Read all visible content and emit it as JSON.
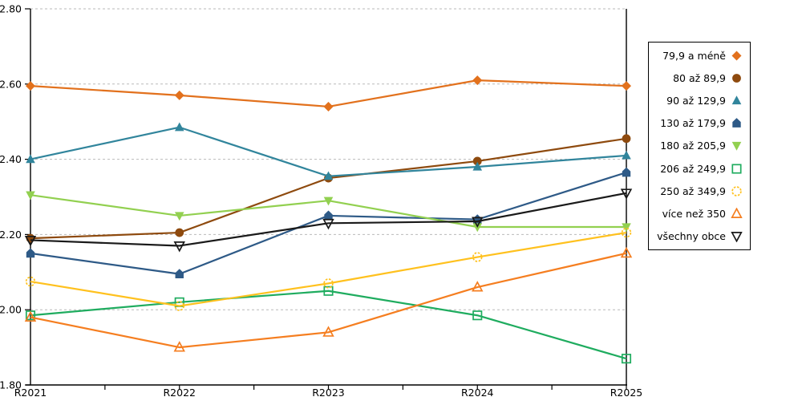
{
  "chart_data": {
    "type": "line",
    "title": "",
    "xlabel": "",
    "ylabel": "",
    "categories": [
      "R2021",
      "R2022",
      "R2023",
      "R2024",
      "R2025"
    ],
    "y_axis": {
      "min": 1.8,
      "max": 2.8,
      "tick_step": 0.2,
      "tick_labels": [
        "2.80",
        "2.60",
        "2.40",
        "2.20",
        "2.00",
        "1.80"
      ]
    },
    "grid": "horizontal dashed gray lines at each 0.20",
    "legend_position": "right outside",
    "series": [
      {
        "name": "79,9 a méně",
        "marker": "diamond",
        "style": "filled",
        "color": "#E2711D",
        "values": [
          2.595,
          2.57,
          2.54,
          2.61,
          2.595
        ]
      },
      {
        "name": "80 až 89,9",
        "marker": "circle",
        "style": "filled",
        "color": "#8E4A0E",
        "values": [
          2.19,
          2.205,
          2.35,
          2.395,
          2.455
        ]
      },
      {
        "name": "90 až 129,9",
        "marker": "triangle-up",
        "style": "filled",
        "color": "#31859C",
        "values": [
          2.4,
          2.485,
          2.355,
          2.38,
          2.41
        ]
      },
      {
        "name": "130 až 179,9",
        "marker": "pentagon",
        "style": "filled",
        "color": "#2E5A87",
        "values": [
          2.15,
          2.095,
          2.25,
          2.24,
          2.365
        ]
      },
      {
        "name": "180 až 205,9",
        "marker": "triangle-down",
        "style": "filled",
        "color": "#92D050",
        "values": [
          2.305,
          2.25,
          2.29,
          2.22,
          2.22
        ]
      },
      {
        "name": "206 až 249,9",
        "marker": "square",
        "style": "open",
        "color": "#1FAC5F",
        "values": [
          1.985,
          2.02,
          2.05,
          1.985,
          1.87
        ]
      },
      {
        "name": "250 až 349,9",
        "marker": "circle",
        "style": "open-dashed",
        "color": "#FFC11E",
        "values": [
          2.075,
          2.01,
          2.07,
          2.14,
          2.205
        ]
      },
      {
        "name": "více než 350",
        "marker": "triangle-up",
        "style": "open",
        "color": "#F57E20",
        "values": [
          1.98,
          1.9,
          1.94,
          2.06,
          2.15
        ]
      },
      {
        "name": "všechny obce",
        "marker": "triangle-down",
        "style": "open",
        "color": "#1A1A1A",
        "values": [
          2.185,
          2.17,
          2.23,
          2.235,
          2.31
        ]
      }
    ]
  },
  "colors": {
    "axis": "#000000",
    "gridline": "#b9b9b9",
    "background": "#ffffff",
    "text": "#000000"
  }
}
